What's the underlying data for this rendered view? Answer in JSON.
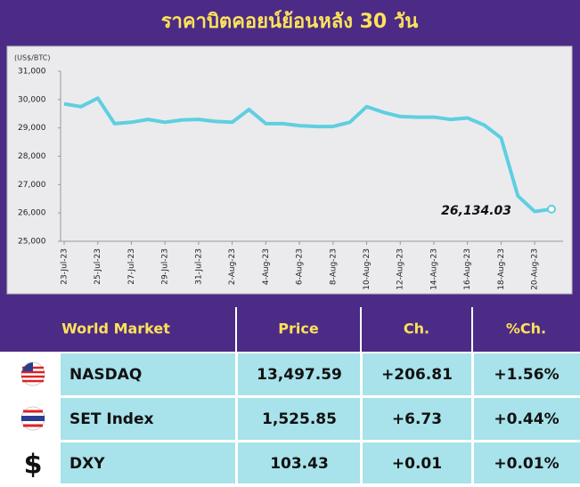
{
  "chart_data": {
    "type": "line",
    "title": "ราคาบิตคอยน์ย้อนหลัง 30 วัน",
    "y_label": "(US$/BTC)",
    "categories": [
      "23-Jul-23",
      null,
      "25-Jul-23",
      null,
      "27-Jul-23",
      null,
      "29-Jul-23",
      null,
      "31-Jul-23",
      null,
      "2-Aug-23",
      null,
      "4-Aug-23",
      null,
      "6-Aug-23",
      null,
      "8-Aug-23",
      null,
      "10-Aug-23",
      null,
      "12-Aug-23",
      null,
      "14-Aug-23",
      null,
      "16-Aug-23",
      null,
      "18-Aug-23",
      null,
      "20-Aug-23",
      null
    ],
    "series": [
      {
        "color": "#5fcfe0",
        "values": [
          29850,
          29750,
          30050,
          29150,
          29200,
          29300,
          29200,
          29280,
          29300,
          29230,
          29200,
          29650,
          29150,
          29150,
          29080,
          29050,
          29050,
          29200,
          29750,
          29550,
          29400,
          29380,
          29380,
          29300,
          29350,
          29100,
          28650,
          26600,
          26050,
          26134.03
        ],
        "value_labels": [
          null,
          null,
          null,
          null,
          null,
          null,
          null,
          null,
          null,
          null,
          null,
          null,
          null,
          null,
          null,
          null,
          null,
          null,
          null,
          null,
          null,
          null,
          null,
          null,
          null,
          null,
          null,
          null,
          null,
          "26,134.03"
        ]
      }
    ],
    "ylim": [
      25000,
      31000
    ],
    "yticks": [
      {
        "value": 25000,
        "label": "25,000"
      },
      {
        "value": 26000,
        "label": "26,000"
      },
      {
        "value": 27000,
        "label": "27,000"
      },
      {
        "value": 28000,
        "label": "28,000"
      },
      {
        "value": 29000,
        "label": "29,000"
      },
      {
        "value": 30000,
        "label": "30,000"
      },
      {
        "value": 31000,
        "label": "31,000"
      }
    ]
  },
  "table": {
    "header": [
      "World Market",
      "Price",
      "Ch.",
      "%Ch."
    ],
    "rows": [
      {
        "icon": null,
        "name": "NASDAQ",
        "price": "13,497.59",
        "ch": "+206.81",
        "pct": "+1.56%"
      },
      {
        "icon": null,
        "name": "SET Index",
        "price": "1,525.85",
        "ch": "+6.73",
        "pct": "+0.44%"
      },
      {
        "icon": "$",
        "name": "DXY",
        "price": "103.43",
        "ch": "+0.01",
        "pct": "+0.01%"
      }
    ]
  }
}
